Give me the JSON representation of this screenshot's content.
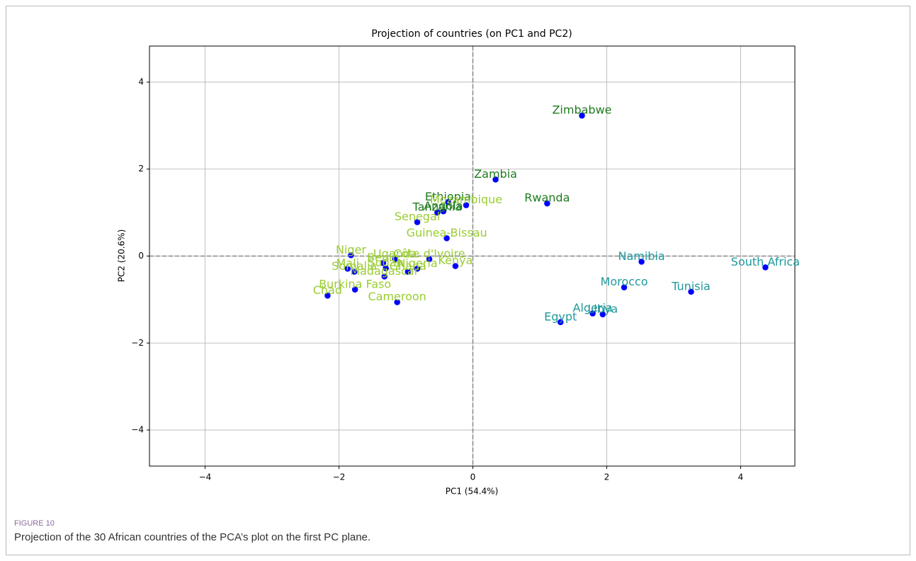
{
  "chart_data": {
    "type": "scatter",
    "title": "Projection of countries (on PC1 and PC2)",
    "x_label": "PC1 (54.4%)",
    "y_label": "PC2 (20.6%)",
    "labels": [
      "Zimbabwe",
      "Zambia",
      "Rwanda",
      "Ethiopia",
      "Mozambique",
      "Tanzania",
      "Angola",
      "Senegal",
      "Guinea-Bissau",
      "Namibia",
      "South Africa",
      "Morocco",
      "Tunisia",
      "Algeria",
      "Libya",
      "Egypt",
      "Niger",
      "Côte d'Ivoire",
      "Kenya",
      "Nigeria",
      "Mali",
      "Benin",
      "Somalia",
      "Uganda",
      "Ghana",
      "Madagascar",
      "Burkina Faso",
      "Chad",
      "Cameroon",
      "Sudan"
    ],
    "x": [
      1.63,
      0.34,
      1.11,
      -0.37,
      -0.1,
      -0.53,
      -0.44,
      -0.83,
      -0.39,
      2.52,
      4.37,
      2.26,
      3.26,
      1.79,
      1.94,
      1.31,
      -1.82,
      -0.65,
      -0.26,
      -0.83,
      -1.87,
      -1.34,
      -1.77,
      -1.16,
      -0.97,
      -1.32,
      -1.76,
      -2.17,
      -1.13,
      -1.3
    ],
    "y": [
      3.23,
      1.76,
      1.21,
      1.24,
      1.17,
      1.0,
      1.03,
      0.78,
      0.41,
      -0.13,
      -0.26,
      -0.72,
      -0.82,
      -1.32,
      -1.34,
      -1.52,
      0.02,
      -0.07,
      -0.23,
      -0.29,
      -0.29,
      -0.16,
      -0.36,
      -0.07,
      -0.36,
      -0.47,
      -0.77,
      -0.91,
      -1.06,
      -0.28
    ],
    "label_colors": [
      "#1e7b1e",
      "#1e7b1e",
      "#1e7b1e",
      "#1e7b1e",
      "#9acd32",
      "#1e7b1e",
      "#1e7b1e",
      "#9acd32",
      "#9acd32",
      "#20999b",
      "#20999b",
      "#20999b",
      "#20999b",
      "#20999b",
      "#20999b",
      "#20999b",
      "#9acd32",
      "#9acd32",
      "#9acd32",
      "#9acd32",
      "#9acd32",
      "#9acd32",
      "#9acd32",
      "#9acd32",
      "#9acd32",
      "#9acd32",
      "#9acd32",
      "#9acd32",
      "#9acd32",
      "#9acd32"
    ],
    "point_color": "#0000ff",
    "xlim": [
      -4.83,
      4.81
    ],
    "ylim": [
      -4.83,
      4.83
    ],
    "xticks": [
      {
        "value": -4,
        "label": "−4"
      },
      {
        "value": -2,
        "label": "−2"
      },
      0,
      2,
      4
    ],
    "yticks": [
      {
        "value": -4,
        "label": "−4"
      },
      {
        "value": -2,
        "label": "−2"
      },
      0,
      2,
      4
    ],
    "grid": true,
    "hlines": [
      0
    ],
    "vlines": [
      0
    ]
  },
  "caption": {
    "label": "FIGURE 10",
    "text": "Projection of the 30 African countries of the PCA’s plot on the first PC plane."
  }
}
